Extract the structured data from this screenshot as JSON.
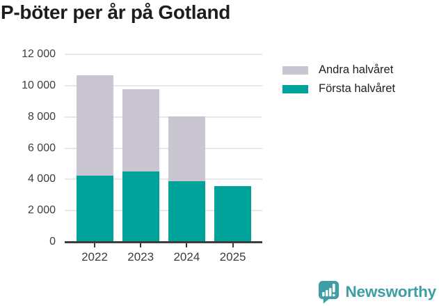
{
  "chart_data": {
    "type": "bar",
    "stacked": true,
    "title": "P-böter per år på Gotland",
    "categories": [
      "2022",
      "2023",
      "2024",
      "2025"
    ],
    "series": [
      {
        "name": "Första halvåret",
        "color": "#00a39a",
        "values": [
          4250,
          4500,
          3900,
          3550
        ]
      },
      {
        "name": "Andra halvåret",
        "color": "#c9c6d1",
        "values": [
          6400,
          5250,
          4150,
          0
        ]
      }
    ],
    "ylim": [
      0,
      12000
    ],
    "yticks": [
      0,
      2000,
      4000,
      6000,
      8000,
      10000,
      12000
    ],
    "ytick_labels": [
      "0",
      "2 000",
      "4 000",
      "6 000",
      "8 000",
      "10 000",
      "12 000"
    ],
    "grid": true,
    "legend_position": "top-right"
  },
  "legend": {
    "items": [
      {
        "label": "Andra halvåret",
        "color": "#c9c6d1"
      },
      {
        "label": "Första halvåret",
        "color": "#00a39a"
      }
    ]
  },
  "footer": {
    "brand": "Newsworthy",
    "brand_color": "#3d9ea3"
  }
}
